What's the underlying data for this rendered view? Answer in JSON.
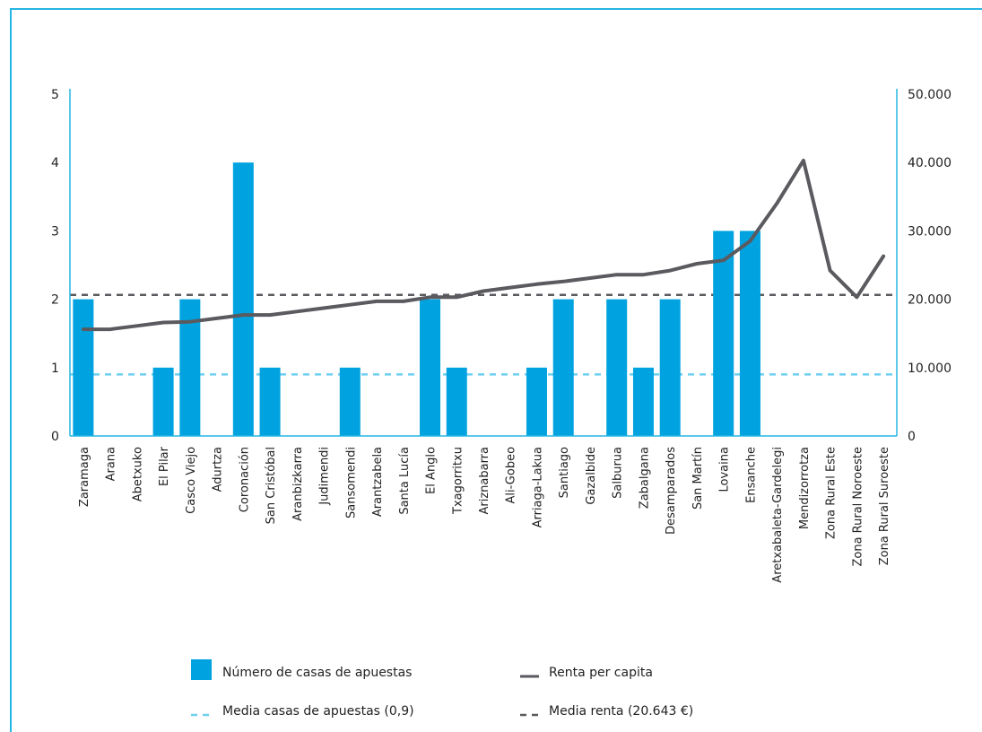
{
  "chart_data": {
    "type": "bar",
    "categories": [
      "Zaramaga",
      "Arana",
      "Abetxuko",
      "El Pilar",
      "Casco Viejo",
      "Adurtza",
      "Coronación",
      "San Cristóbal",
      "Aranbizkarra",
      "Judimendi",
      "Sansomendi",
      "Arantzabela",
      "Santa Lucía",
      "El Anglo",
      "Txagorritxu",
      "Ariznabarra",
      "Ali-Gobeo",
      "Arriaga-Lakua",
      "Santiago",
      "Gazalbide",
      "Salburua",
      "Zabalgana",
      "Desamparados",
      "San Martín",
      "Lovaina",
      "Ensanche",
      "Aretxabaleta-Gardelegi",
      "Mendizorrotza",
      "Zona Rural Este",
      "Zona Rural Noroeste",
      "Zona Rural Suroeste"
    ],
    "series": [
      {
        "name": "Número de casas de apuestas",
        "type": "bar",
        "axis": "left",
        "color": "#00a3e0",
        "values": [
          2,
          0,
          0,
          1,
          2,
          0,
          4,
          1,
          0,
          0,
          1,
          0,
          0,
          2,
          1,
          0,
          0,
          1,
          2,
          0,
          2,
          1,
          2,
          0,
          3,
          3,
          0,
          0,
          0,
          0,
          0
        ]
      },
      {
        "name": "Renta per capita",
        "type": "line",
        "axis": "right",
        "color": "#5a5a5f",
        "values": [
          15600,
          15600,
          16100,
          16600,
          16700,
          17200,
          17700,
          17700,
          18200,
          18700,
          19200,
          19700,
          19700,
          20300,
          20300,
          21200,
          21700,
          22200,
          22600,
          23100,
          23600,
          23600,
          24200,
          25200,
          25700,
          28500,
          34000,
          40300,
          24200,
          20300,
          26300
        ]
      }
    ],
    "reference_lines": [
      {
        "name": "Media casas de apuestas (0,9)",
        "axis": "left",
        "value": 0.9,
        "color": "#6fcff0",
        "style": "dashed"
      },
      {
        "name": "Media renta (20.643 €)",
        "axis": "right",
        "value": 20643,
        "color": "#5a5a5f",
        "style": "dashed"
      }
    ],
    "y_left": {
      "ylim": [
        0,
        5
      ],
      "ticks": [
        "0",
        "1",
        "2",
        "3",
        "4",
        "5"
      ]
    },
    "y_right": {
      "ylim": [
        0,
        50000
      ],
      "ticks": [
        "0",
        "10.000",
        "20.000",
        "30.000",
        "40.000",
        "50.000"
      ]
    },
    "axis_color": "#27b5e4",
    "legend_position": "bottom",
    "grid": false
  },
  "legend": [
    {
      "label": "Número de casas de apuestas",
      "symbol": "box",
      "color": "#00a3e0"
    },
    {
      "label": "Renta per capita",
      "symbol": "line",
      "color": "#5a5a5f"
    },
    {
      "label": "Media casas de apuestas (0,9)",
      "symbol": "dash",
      "color": "#6fcff0"
    },
    {
      "label": "Media renta (20.643 €)",
      "symbol": "dash",
      "color": "#5a5a5f"
    }
  ]
}
